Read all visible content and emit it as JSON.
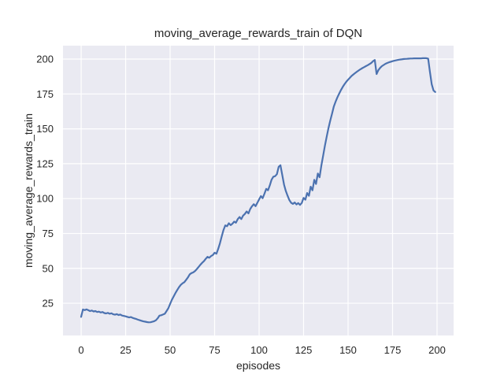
{
  "chart_data": {
    "type": "line",
    "title": "moving_average_rewards_train of DQN",
    "xlabel": "episodes",
    "ylabel": "moving_average_rewards_train",
    "x_ticks": [
      0,
      25,
      50,
      75,
      100,
      125,
      150,
      175,
      200
    ],
    "y_ticks": [
      25,
      50,
      75,
      100,
      125,
      150,
      175,
      200
    ],
    "xlim": [
      -10.2,
      209.3
    ],
    "ylim": [
      1.9,
      209.6
    ],
    "grid": true,
    "legend": "none",
    "colors": {
      "figure_background": "#FFFFFF",
      "axes_background": "#EAEAF2",
      "grid": "#FFFFFF",
      "text": "#262626",
      "line": "#4C72B0"
    },
    "series": [
      {
        "name": "moving_average_rewards_train",
        "color": "#4C72B0",
        "points": [
          [
            0,
            15.2
          ],
          [
            1,
            20.5
          ],
          [
            2,
            20.1
          ],
          [
            3,
            20.6
          ],
          [
            4,
            20.0
          ],
          [
            5,
            19.4
          ],
          [
            6,
            19.8
          ],
          [
            7,
            19.1
          ],
          [
            8,
            19.4
          ],
          [
            9,
            18.7
          ],
          [
            10,
            19.0
          ],
          [
            11,
            18.4
          ],
          [
            12,
            18.7
          ],
          [
            13,
            18.0
          ],
          [
            14,
            17.7
          ],
          [
            15,
            18.1
          ],
          [
            16,
            17.5
          ],
          [
            17,
            17.8
          ],
          [
            18,
            17.1
          ],
          [
            19,
            16.8
          ],
          [
            20,
            17.2
          ],
          [
            21,
            16.6
          ],
          [
            22,
            16.9
          ],
          [
            23,
            16.2
          ],
          [
            24,
            15.9
          ],
          [
            25,
            15.6
          ],
          [
            26,
            15.2
          ],
          [
            27,
            14.8
          ],
          [
            28,
            15.1
          ],
          [
            29,
            14.5
          ],
          [
            30,
            14.1
          ],
          [
            31,
            13.7
          ],
          [
            32,
            13.2
          ],
          [
            33,
            12.8
          ],
          [
            34,
            12.4
          ],
          [
            35,
            12.0
          ],
          [
            36,
            11.8
          ],
          [
            37,
            11.5
          ],
          [
            38,
            11.3
          ],
          [
            39,
            11.4
          ],
          [
            40,
            11.7
          ],
          [
            41,
            12.1
          ],
          [
            42,
            12.8
          ],
          [
            43,
            14.2
          ],
          [
            44,
            16.1
          ],
          [
            45,
            16.4
          ],
          [
            46,
            16.9
          ],
          [
            47,
            17.5
          ],
          [
            48,
            19.4
          ],
          [
            49,
            21.5
          ],
          [
            50,
            24.5
          ],
          [
            51,
            27.5
          ],
          [
            52,
            30.0
          ],
          [
            53,
            32.3
          ],
          [
            54,
            34.5
          ],
          [
            55,
            36.5
          ],
          [
            56,
            38.2
          ],
          [
            57,
            39.3
          ],
          [
            58,
            40.1
          ],
          [
            59,
            41.8
          ],
          [
            60,
            43.5
          ],
          [
            61,
            45.7
          ],
          [
            62,
            46.6
          ],
          [
            63,
            47.1
          ],
          [
            64,
            48.1
          ],
          [
            65,
            49.5
          ],
          [
            66,
            51.0
          ],
          [
            67,
            52.6
          ],
          [
            68,
            54.0
          ],
          [
            69,
            55.2
          ],
          [
            70,
            56.8
          ],
          [
            71,
            58.3
          ],
          [
            72,
            57.6
          ],
          [
            73,
            58.8
          ],
          [
            74,
            59.6
          ],
          [
            75,
            61.2
          ],
          [
            76,
            60.5
          ],
          [
            77,
            63.8
          ],
          [
            78,
            68.0
          ],
          [
            79,
            73.0
          ],
          [
            80,
            77.5
          ],
          [
            81,
            80.8
          ],
          [
            82,
            80.2
          ],
          [
            83,
            82.3
          ],
          [
            84,
            81.0
          ],
          [
            85,
            82.0
          ],
          [
            86,
            83.5
          ],
          [
            87,
            82.7
          ],
          [
            88,
            85.3
          ],
          [
            89,
            86.8
          ],
          [
            90,
            85.3
          ],
          [
            91,
            87.8
          ],
          [
            92,
            89.0
          ],
          [
            93,
            90.8
          ],
          [
            94,
            89.4
          ],
          [
            95,
            92.5
          ],
          [
            96,
            94.5
          ],
          [
            97,
            96.0
          ],
          [
            98,
            94.6
          ],
          [
            99,
            97.0
          ],
          [
            100,
            99.4
          ],
          [
            101,
            101.8
          ],
          [
            102,
            100.3
          ],
          [
            103,
            103.5
          ],
          [
            104,
            107.0
          ],
          [
            105,
            106.0
          ],
          [
            106,
            109.5
          ],
          [
            107,
            113.5
          ],
          [
            108,
            115.7
          ],
          [
            109,
            116.1
          ],
          [
            110,
            117.5
          ],
          [
            111,
            122.8
          ],
          [
            112,
            123.9
          ],
          [
            113,
            117.0
          ],
          [
            114,
            110.0
          ],
          [
            115,
            105.5
          ],
          [
            116,
            102.0
          ],
          [
            117,
            99.0
          ],
          [
            118,
            97.0
          ],
          [
            119,
            96.2
          ],
          [
            120,
            97.2
          ],
          [
            121,
            95.8
          ],
          [
            122,
            96.8
          ],
          [
            123,
            95.5
          ],
          [
            124,
            96.9
          ],
          [
            125,
            100.5
          ],
          [
            126,
            99.2
          ],
          [
            127,
            104.0
          ],
          [
            128,
            102.0
          ],
          [
            129,
            108.5
          ],
          [
            130,
            106.0
          ],
          [
            131,
            113.5
          ],
          [
            132,
            110.5
          ],
          [
            133,
            118.0
          ],
          [
            134,
            115.3
          ],
          [
            135,
            123.8
          ],
          [
            136,
            131.0
          ],
          [
            137,
            138.0
          ],
          [
            138,
            144.5
          ],
          [
            139,
            150.5
          ],
          [
            140,
            156.0
          ],
          [
            141,
            161.0
          ],
          [
            142,
            166.0
          ],
          [
            143,
            169.5
          ],
          [
            144,
            172.5
          ],
          [
            145,
            175.2
          ],
          [
            146,
            177.8
          ],
          [
            147,
            180.0
          ],
          [
            148,
            182.0
          ],
          [
            149,
            183.7
          ],
          [
            150,
            185.2
          ],
          [
            151,
            186.6
          ],
          [
            152,
            187.9
          ],
          [
            153,
            189.0
          ],
          [
            154,
            190.0
          ],
          [
            155,
            191.0
          ],
          [
            156,
            191.9
          ],
          [
            157,
            192.7
          ],
          [
            158,
            193.5
          ],
          [
            159,
            194.2
          ],
          [
            160,
            194.9
          ],
          [
            161,
            195.6
          ],
          [
            162,
            196.4
          ],
          [
            163,
            197.2
          ],
          [
            164,
            198.4
          ],
          [
            165,
            199.4
          ],
          [
            166,
            189.3
          ],
          [
            167,
            192.0
          ],
          [
            168,
            193.7
          ],
          [
            169,
            194.9
          ],
          [
            170,
            195.8
          ],
          [
            171,
            196.6
          ],
          [
            172,
            197.2
          ],
          [
            173,
            197.7
          ],
          [
            174,
            198.1
          ],
          [
            175,
            198.5
          ],
          [
            176,
            198.8
          ],
          [
            177,
            199.1
          ],
          [
            178,
            199.4
          ],
          [
            179,
            199.6
          ],
          [
            180,
            199.8
          ],
          [
            181,
            200.0
          ],
          [
            182,
            200.1
          ],
          [
            183,
            200.2
          ],
          [
            184,
            200.3
          ],
          [
            185,
            200.4
          ],
          [
            186,
            200.4
          ],
          [
            187,
            200.5
          ],
          [
            188,
            200.5
          ],
          [
            189,
            200.5
          ],
          [
            190,
            200.5
          ],
          [
            191,
            200.5
          ],
          [
            192,
            200.6
          ],
          [
            193,
            200.6
          ],
          [
            194,
            200.6
          ],
          [
            195,
            200.3
          ],
          [
            196,
            191.0
          ],
          [
            197,
            182.0
          ],
          [
            198,
            177.5
          ],
          [
            199,
            176.4
          ]
        ]
      }
    ]
  }
}
